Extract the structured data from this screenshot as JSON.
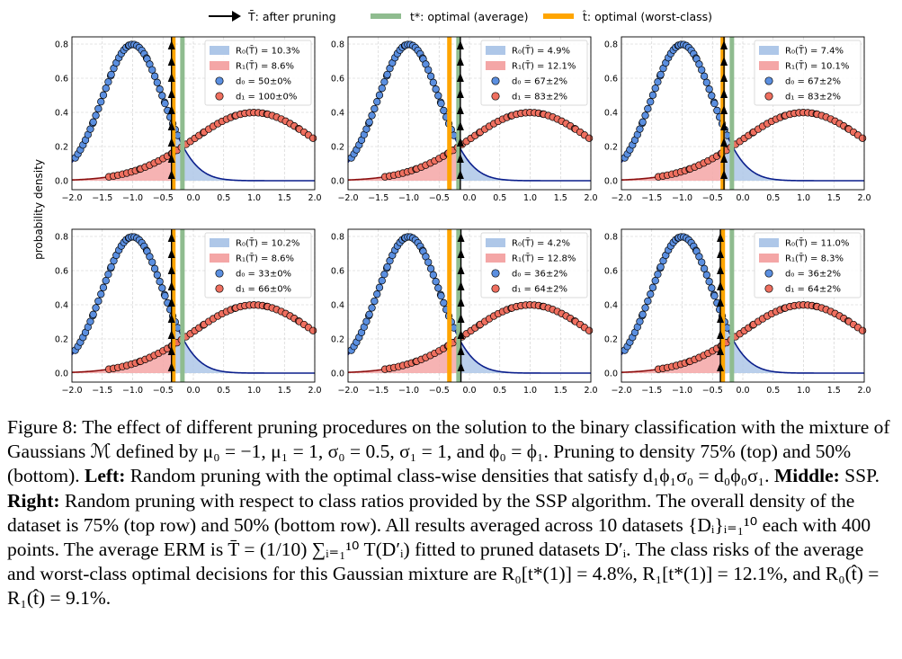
{
  "legend": {
    "items": [
      {
        "label": "T̄: after pruning",
        "kind": "arrow",
        "color": "#000000"
      },
      {
        "label": "t*: optimal (average)",
        "kind": "line",
        "color": "#8fbc8f"
      },
      {
        "label": "t̂: optimal (worst-class)",
        "kind": "line",
        "color": "#ffa500"
      }
    ]
  },
  "ylabel": "probability density",
  "colors": {
    "class0_fill": "#aec7e8",
    "class1_fill": "#f4a6a6",
    "class0_curve": "#0b1f8c",
    "class1_curve": "#8b1010",
    "class0_point": "#5b8fe0",
    "class1_point": "#ef6f5f",
    "t_star": "#8fbc8f",
    "t_hat": "#ffa500",
    "grid": "#cccccc"
  },
  "chart_data": [
    {
      "type": "line",
      "row": "top",
      "column": "left",
      "xlim": [
        -2,
        2
      ],
      "ylim": [
        0,
        0.8
      ],
      "xticks": [
        "−2.0",
        "−1.5",
        "−1.0",
        "−0.5",
        "0.0",
        "0.5",
        "1.0",
        "1.5",
        "2.0"
      ],
      "yticks": [
        "0.0",
        "0.2",
        "0.4",
        "0.6",
        "0.8"
      ],
      "curves": [
        {
          "mu": -1,
          "sigma": 0.5
        },
        {
          "mu": 1,
          "sigma": 1
        }
      ],
      "t_bar": -0.36,
      "t_star": -0.18,
      "t_hat": -0.33,
      "legend": [
        "R₀(T̄) = 10.3%",
        "R₁(T̄) = 8.6%",
        "d₀ = 50±0%",
        "d₁ = 100±0%"
      ]
    },
    {
      "type": "line",
      "row": "top",
      "column": "middle",
      "xlim": [
        -2,
        2
      ],
      "ylim": [
        0,
        0.8
      ],
      "xticks": [
        "−2.0",
        "−1.5",
        "−1.0",
        "−0.5",
        "0.0",
        "0.5",
        "1.0",
        "1.5",
        "2.0"
      ],
      "yticks": [
        "0.0",
        "0.2",
        "0.4",
        "0.6",
        "0.8"
      ],
      "curves": [
        {
          "mu": -1,
          "sigma": 0.5
        },
        {
          "mu": 1,
          "sigma": 1
        }
      ],
      "t_bar": -0.15,
      "t_star": -0.18,
      "t_hat": -0.33,
      "legend": [
        "R₀(T̄) = 4.9%",
        "R₁(T̄) = 12.1%",
        "d₀ = 67±2%",
        "d₁ = 83±2%"
      ]
    },
    {
      "type": "line",
      "row": "top",
      "column": "right",
      "xlim": [
        -2,
        2
      ],
      "ylim": [
        0,
        0.8
      ],
      "xticks": [
        "−2.0",
        "−1.5",
        "−1.0",
        "−0.5",
        "0.0",
        "0.5",
        "1.0",
        "1.5",
        "2.0"
      ],
      "yticks": [
        "0.0",
        "0.2",
        "0.4",
        "0.6",
        "0.8"
      ],
      "curves": [
        {
          "mu": -1,
          "sigma": 0.5
        },
        {
          "mu": 1,
          "sigma": 1
        }
      ],
      "t_bar": -0.31,
      "t_star": -0.18,
      "t_hat": -0.33,
      "legend": [
        "R₀(T̄) = 7.4%",
        "R₁(T̄) = 10.1%",
        "d₀ = 67±2%",
        "d₁ = 83±2%"
      ]
    },
    {
      "type": "line",
      "row": "bottom",
      "column": "left",
      "xlim": [
        -2,
        2
      ],
      "ylim": [
        0,
        0.8
      ],
      "xticks": [
        "−2.0",
        "−1.5",
        "−1.0",
        "−0.5",
        "0.0",
        "0.5",
        "1.0",
        "1.5",
        "2.0"
      ],
      "yticks": [
        "0.0",
        "0.2",
        "0.4",
        "0.6",
        "0.8"
      ],
      "curves": [
        {
          "mu": -1,
          "sigma": 0.5
        },
        {
          "mu": 1,
          "sigma": 1
        }
      ],
      "t_bar": -0.36,
      "t_star": -0.18,
      "t_hat": -0.33,
      "legend": [
        "R₀(T̄) = 10.2%",
        "R₁(T̄) = 8.6%",
        "d₀ = 33±0%",
        "d₁ = 66±0%"
      ]
    },
    {
      "type": "line",
      "row": "bottom",
      "column": "middle",
      "xlim": [
        -2,
        2
      ],
      "ylim": [
        0,
        0.8
      ],
      "xticks": [
        "−2.0",
        "−1.5",
        "−1.0",
        "−0.5",
        "0.0",
        "0.5",
        "1.0",
        "1.5",
        "2.0"
      ],
      "yticks": [
        "0.0",
        "0.2",
        "0.4",
        "0.6",
        "0.8"
      ],
      "curves": [
        {
          "mu": -1,
          "sigma": 0.5
        },
        {
          "mu": 1,
          "sigma": 1
        }
      ],
      "t_bar": -0.14,
      "t_star": -0.18,
      "t_hat": -0.33,
      "legend": [
        "R₀(T̄) = 4.2%",
        "R₁(T̄) = 12.8%",
        "d₀ = 36±2%",
        "d₁ = 64±2%"
      ]
    },
    {
      "type": "line",
      "row": "bottom",
      "column": "right",
      "xlim": [
        -2,
        2
      ],
      "ylim": [
        0,
        0.8
      ],
      "xticks": [
        "−2.0",
        "−1.5",
        "−1.0",
        "−0.5",
        "0.0",
        "0.5",
        "1.0",
        "1.5",
        "2.0"
      ],
      "yticks": [
        "0.0",
        "0.2",
        "0.4",
        "0.6",
        "0.8"
      ],
      "curves": [
        {
          "mu": -1,
          "sigma": 0.5
        },
        {
          "mu": 1,
          "sigma": 1
        }
      ],
      "t_bar": -0.37,
      "t_star": -0.18,
      "t_hat": -0.33,
      "legend": [
        "R₀(T̄) = 11.0%",
        "R₁(T̄) = 8.3%",
        "d₀ = 36±2%",
        "d₁ = 64±2%"
      ]
    }
  ],
  "caption": {
    "parts": [
      {
        "t": "Figure 8: The effect of different pruning procedures on the solution to the binary classification with the mixture of Gaussians ℳ defined by μ₀ = −1, μ₁ = 1, σ₀ = 0.5, σ₁ = 1, and ϕ₀ = ϕ₁. Pruning to density 75% (top) and 50% (bottom). ",
        "b": false
      },
      {
        "t": "Left:",
        "b": true
      },
      {
        "t": " Random pruning with the optimal class-wise densities that satisfy d₁ϕ₁σ₀ = d₀ϕ₀σ₁. ",
        "b": false
      },
      {
        "t": "Middle:",
        "b": true
      },
      {
        "t": " SSP. ",
        "b": false
      },
      {
        "t": "Right:",
        "b": true
      },
      {
        "t": " Random pruning with respect to class ratios provided by the SSP algorithm. The overall density of the dataset is 75% (top row) and 50% (bottom row). All results averaged across 10 datasets {Dᵢ}ᵢ₌₁¹⁰ each with 400 points. The average ERM is T̄ = (1/10) ∑ᵢ₌₁¹⁰ T(D′ᵢ) fitted to pruned datasets D′ᵢ. The class risks of the average and worst-class optimal decisions for this Gaussian mixture are R₀[t*(1)] = 4.8%, R₁[t*(1)] = 12.1%, and R₀(t̂) = R₁(t̂) = 9.1%.",
        "b": false
      }
    ]
  }
}
